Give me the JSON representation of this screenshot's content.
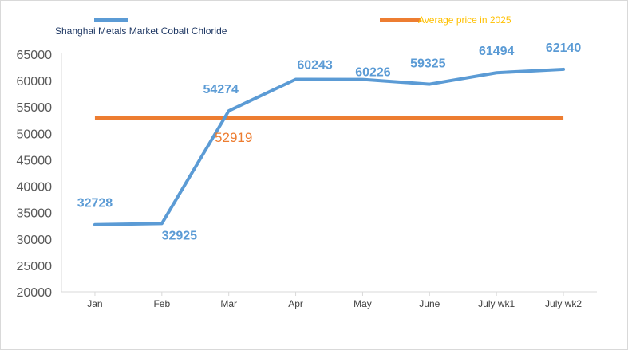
{
  "chart_data": {
    "type": "line",
    "categories": [
      "Jan",
      "Feb",
      "Mar",
      "Apr",
      "May",
      "June",
      "July wk1",
      "July wk2"
    ],
    "series": [
      {
        "name": "Shanghai Metals Market Cobalt Chloride",
        "values": [
          32728,
          32925,
          54274,
          60243,
          60226,
          59325,
          61494,
          62140
        ],
        "color": "#5b9bd5"
      },
      {
        "name": "Average price in 2025",
        "values": [
          52919,
          52919,
          52919,
          52919,
          52919,
          52919,
          52919,
          52919
        ],
        "color": "#ed7d31"
      }
    ],
    "average_label": "52919",
    "average_label_color": "#ed7d31",
    "ylim": [
      20000,
      65000
    ],
    "y_ticks": [
      "20000",
      "25000",
      "30000",
      "35000",
      "40000",
      "45000",
      "50000",
      "55000",
      "60000",
      "65000"
    ],
    "legend_text_color_average": "#ffc000",
    "legend_text_color_main": "#1f3864",
    "data_label_color": "#5b9bd5",
    "axis_color": "#d9d9d9",
    "tick_label_color": "#595959",
    "grid": false,
    "legend_position": "top"
  }
}
